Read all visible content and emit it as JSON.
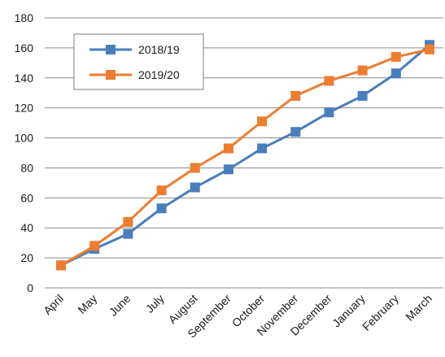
{
  "chart_data": {
    "type": "line",
    "categories": [
      "April",
      "May",
      "June",
      "July",
      "August",
      "September",
      "October",
      "November",
      "December",
      "January",
      "February",
      "March"
    ],
    "series": [
      {
        "name": "2018/19",
        "color": "#4a7ebb",
        "values": [
          15,
          26,
          36,
          53,
          67,
          79,
          93,
          104,
          117,
          128,
          143,
          162
        ]
      },
      {
        "name": "2019/20",
        "color": "#ed7d31",
        "values": [
          15,
          28,
          44,
          65,
          80,
          93,
          111,
          128,
          138,
          145,
          154,
          159
        ]
      }
    ],
    "ylim": [
      0,
      180
    ],
    "yticks": [
      0,
      20,
      40,
      60,
      80,
      100,
      120,
      140,
      160,
      180
    ],
    "grid": true,
    "legend": "top-left, inside plot"
  }
}
